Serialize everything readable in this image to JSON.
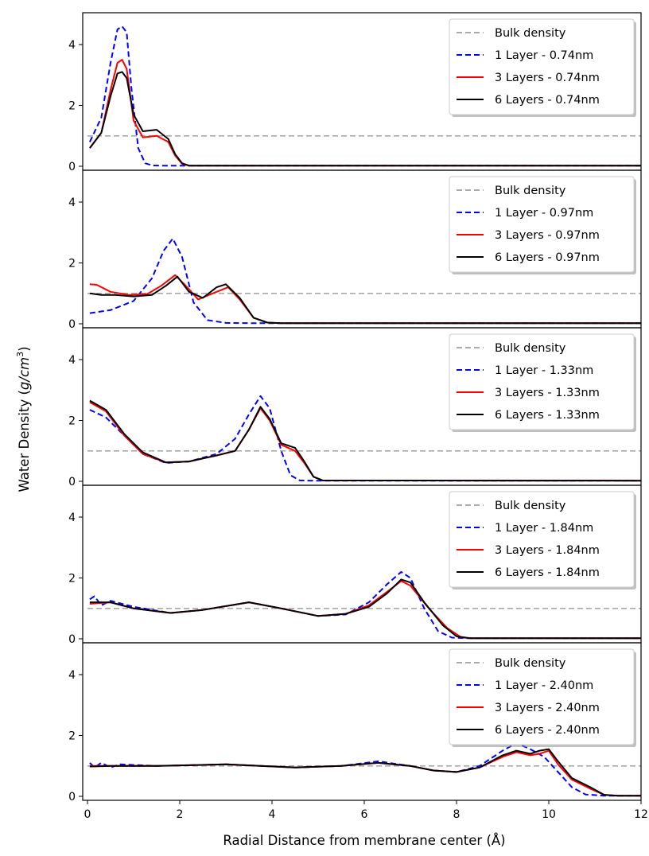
{
  "figure": {
    "xlabel": "Radial Distance from membrane center (Å)",
    "ylabel_main": "Water Density (",
    "ylabel_unit": "g/cm",
    "ylabel_exp": "3",
    "ylabel_close": ")"
  },
  "chart_data": [
    {
      "type": "line",
      "xlim": [
        0,
        12
      ],
      "ylim": [
        0,
        5
      ],
      "grid": false,
      "legend": "top-right",
      "xticks": [
        "0",
        "2",
        "4",
        "6",
        "8",
        "10",
        "12"
      ],
      "yticks": [
        "0",
        "2",
        "4"
      ],
      "series": [
        {
          "name": "Bulk density",
          "color": "#aaaaaa",
          "style": "dashed",
          "x": [
            0,
            12
          ],
          "y": [
            1,
            1
          ]
        },
        {
          "name": "1 Layer - 0.74nm",
          "color": "#0000ff",
          "style": "dashed",
          "x": [
            0.05,
            0.3,
            0.5,
            0.65,
            0.75,
            0.85,
            0.95,
            1.1,
            1.25,
            1.4,
            1.6,
            2.0,
            12
          ],
          "y": [
            0.8,
            1.6,
            3.4,
            4.5,
            4.6,
            4.4,
            2.6,
            0.6,
            0.1,
            0.03,
            0.02,
            0.02,
            0.02
          ]
        },
        {
          "name": "3 Layers - 0.74nm",
          "color": "#ff0000",
          "style": "solid",
          "x": [
            0.05,
            0.3,
            0.5,
            0.65,
            0.75,
            0.85,
            1.0,
            1.2,
            1.5,
            1.75,
            1.9,
            2.05,
            2.2,
            12
          ],
          "y": [
            0.6,
            1.1,
            2.5,
            3.4,
            3.5,
            3.2,
            1.5,
            0.95,
            1.0,
            0.8,
            0.35,
            0.08,
            0.02,
            0.02
          ]
        },
        {
          "name": "6 Layers - 0.74nm",
          "color": "#000000",
          "style": "solid",
          "x": [
            0.05,
            0.3,
            0.5,
            0.65,
            0.75,
            0.85,
            1.0,
            1.2,
            1.5,
            1.75,
            1.9,
            2.05,
            2.2,
            12
          ],
          "y": [
            0.6,
            1.1,
            2.3,
            3.05,
            3.1,
            2.9,
            1.7,
            1.15,
            1.2,
            0.9,
            0.4,
            0.1,
            0.02,
            0.02
          ]
        }
      ]
    },
    {
      "type": "line",
      "xlim": [
        0,
        12
      ],
      "ylim": [
        0,
        5
      ],
      "grid": false,
      "legend": "top-right",
      "xticks": [
        "0",
        "2",
        "4",
        "6",
        "8",
        "10",
        "12"
      ],
      "yticks": [
        "0",
        "2",
        "4"
      ],
      "series": [
        {
          "name": "Bulk density",
          "color": "#aaaaaa",
          "style": "dashed",
          "x": [
            0,
            12
          ],
          "y": [
            1,
            1
          ]
        },
        {
          "name": "1 Layer - 0.97nm",
          "color": "#0000ff",
          "style": "dashed",
          "x": [
            0.05,
            0.5,
            1.0,
            1.4,
            1.65,
            1.85,
            2.05,
            2.3,
            2.6,
            3.0,
            3.5,
            12
          ],
          "y": [
            0.35,
            0.45,
            0.75,
            1.5,
            2.4,
            2.8,
            2.2,
            0.7,
            0.12,
            0.03,
            0.02,
            0.02
          ]
        },
        {
          "name": "3 Layers - 0.97nm",
          "color": "#ff0000",
          "style": "solid",
          "x": [
            0.05,
            0.2,
            0.5,
            0.9,
            1.3,
            1.6,
            1.9,
            2.1,
            2.4,
            2.8,
            3.05,
            3.3,
            3.6,
            3.9,
            4.2,
            12
          ],
          "y": [
            1.3,
            1.28,
            1.05,
            0.95,
            0.98,
            1.25,
            1.6,
            1.3,
            0.8,
            1.05,
            1.2,
            0.8,
            0.2,
            0.04,
            0.02,
            0.02
          ]
        },
        {
          "name": "6 Layers - 0.97nm",
          "color": "#000000",
          "style": "solid",
          "x": [
            0.05,
            0.3,
            0.6,
            1.0,
            1.4,
            1.7,
            1.95,
            2.2,
            2.5,
            2.8,
            3.0,
            3.3,
            3.6,
            3.9,
            4.2,
            12
          ],
          "y": [
            1.0,
            0.95,
            0.95,
            0.9,
            0.95,
            1.25,
            1.55,
            1.05,
            0.85,
            1.2,
            1.3,
            0.85,
            0.2,
            0.04,
            0.02,
            0.02
          ]
        }
      ]
    },
    {
      "type": "line",
      "xlim": [
        0,
        12
      ],
      "ylim": [
        0,
        5
      ],
      "grid": false,
      "legend": "top-right",
      "xticks": [
        "0",
        "2",
        "4",
        "6",
        "8",
        "10",
        "12"
      ],
      "yticks": [
        "0",
        "2",
        "4"
      ],
      "series": [
        {
          "name": "Bulk density",
          "color": "#aaaaaa",
          "style": "dashed",
          "x": [
            0,
            12
          ],
          "y": [
            1,
            1
          ]
        },
        {
          "name": "1 Layer - 1.33nm",
          "color": "#0000ff",
          "style": "dashed",
          "x": [
            0.05,
            0.4,
            0.8,
            1.2,
            1.7,
            2.2,
            2.8,
            3.2,
            3.5,
            3.75,
            3.95,
            4.2,
            4.4,
            4.6,
            4.9,
            12
          ],
          "y": [
            2.35,
            2.1,
            1.5,
            0.9,
            0.6,
            0.65,
            0.9,
            1.4,
            2.2,
            2.8,
            2.4,
            1.0,
            0.2,
            0.03,
            0.02,
            0.02
          ]
        },
        {
          "name": "3 Layers - 1.33nm",
          "color": "#ff0000",
          "style": "solid",
          "x": [
            0.05,
            0.4,
            0.8,
            1.2,
            1.7,
            2.2,
            2.8,
            3.2,
            3.5,
            3.75,
            3.95,
            4.2,
            4.5,
            4.7,
            4.9,
            5.1,
            12
          ],
          "y": [
            2.6,
            2.3,
            1.5,
            0.9,
            0.62,
            0.65,
            0.85,
            1.0,
            1.7,
            2.4,
            2.0,
            1.2,
            1.0,
            0.6,
            0.15,
            0.03,
            0.02
          ]
        },
        {
          "name": "6 Layers - 1.33nm",
          "color": "#000000",
          "style": "solid",
          "x": [
            0.05,
            0.4,
            0.8,
            1.2,
            1.7,
            2.2,
            2.8,
            3.2,
            3.5,
            3.75,
            3.95,
            4.2,
            4.5,
            4.7,
            4.9,
            5.1,
            12
          ],
          "y": [
            2.65,
            2.35,
            1.55,
            0.95,
            0.62,
            0.65,
            0.85,
            1.0,
            1.7,
            2.45,
            2.05,
            1.25,
            1.1,
            0.65,
            0.15,
            0.03,
            0.02
          ]
        }
      ]
    },
    {
      "type": "line",
      "xlim": [
        0,
        12
      ],
      "ylim": [
        0,
        5
      ],
      "grid": false,
      "legend": "top-right",
      "xticks": [
        "0",
        "2",
        "4",
        "6",
        "8",
        "10",
        "12"
      ],
      "yticks": [
        "0",
        "2",
        "4"
      ],
      "series": [
        {
          "name": "Bulk density",
          "color": "#aaaaaa",
          "style": "dashed",
          "x": [
            0,
            12
          ],
          "y": [
            1,
            1
          ]
        },
        {
          "name": "1 Layer - 1.84nm",
          "color": "#0000ff",
          "style": "dashed",
          "x": [
            0.05,
            0.15,
            0.3,
            0.5,
            1.0,
            1.8,
            2.5,
            3.5,
            4.2,
            5.0,
            5.6,
            6.1,
            6.5,
            6.8,
            7.0,
            7.3,
            7.6,
            7.9,
            8.2,
            12
          ],
          "y": [
            1.3,
            1.4,
            1.1,
            1.25,
            1.05,
            0.85,
            0.95,
            1.2,
            1.0,
            0.75,
            0.8,
            1.2,
            1.8,
            2.2,
            2.0,
            1.0,
            0.25,
            0.04,
            0.02,
            0.02
          ]
        },
        {
          "name": "3 Layers - 1.84nm",
          "color": "#ff0000",
          "style": "solid",
          "x": [
            0.05,
            0.5,
            1.0,
            1.8,
            2.5,
            3.5,
            4.2,
            5.0,
            5.6,
            6.1,
            6.5,
            6.8,
            7.0,
            7.4,
            7.8,
            8.1,
            8.3,
            12
          ],
          "y": [
            1.15,
            1.2,
            1.0,
            0.85,
            0.95,
            1.2,
            1.0,
            0.75,
            0.82,
            1.1,
            1.55,
            1.9,
            1.75,
            1.0,
            0.35,
            0.05,
            0.02,
            0.02
          ]
        },
        {
          "name": "6 Layers - 1.84nm",
          "color": "#000000",
          "style": "solid",
          "x": [
            0.05,
            0.5,
            1.0,
            1.8,
            2.5,
            3.5,
            4.2,
            5.0,
            5.6,
            6.1,
            6.5,
            6.8,
            7.0,
            7.3,
            7.7,
            8.0,
            8.3,
            12
          ],
          "y": [
            1.2,
            1.2,
            1.0,
            0.85,
            0.95,
            1.2,
            1.0,
            0.75,
            0.82,
            1.05,
            1.5,
            1.95,
            1.85,
            1.2,
            0.45,
            0.08,
            0.02,
            0.02
          ]
        }
      ]
    },
    {
      "type": "line",
      "xlim": [
        0,
        12
      ],
      "ylim": [
        0,
        5
      ],
      "grid": false,
      "legend": "top-right",
      "xticks": [
        "0",
        "2",
        "4",
        "6",
        "8",
        "10",
        "12"
      ],
      "yticks": [
        "0",
        "2",
        "4"
      ],
      "series": [
        {
          "name": "Bulk density",
          "color": "#aaaaaa",
          "style": "dashed",
          "x": [
            0,
            12
          ],
          "y": [
            1,
            1
          ]
        },
        {
          "name": "1 Layer - 2.40nm",
          "color": "#0000ff",
          "style": "dashed",
          "x": [
            0.05,
            0.15,
            0.3,
            0.5,
            0.7,
            1.5,
            3.0,
            4.5,
            5.5,
            6.3,
            7.0,
            7.5,
            8.0,
            8.5,
            9.0,
            9.3,
            9.6,
            9.9,
            10.2,
            10.5,
            10.8,
            11.2,
            12
          ],
          "y": [
            1.1,
            0.95,
            1.1,
            0.95,
            1.05,
            1.0,
            1.05,
            0.95,
            1.0,
            1.15,
            1.0,
            0.85,
            0.8,
            1.0,
            1.5,
            1.75,
            1.55,
            1.3,
            0.8,
            0.3,
            0.06,
            0.02,
            0.02
          ]
        },
        {
          "name": "3 Layers - 2.40nm",
          "color": "#ff0000",
          "style": "solid",
          "x": [
            0.05,
            0.5,
            1.5,
            3.0,
            4.5,
            5.5,
            6.3,
            7.0,
            7.5,
            8.0,
            8.5,
            9.0,
            9.3,
            9.6,
            9.8,
            10.0,
            10.2,
            10.5,
            10.9,
            11.2,
            11.5,
            12
          ],
          "y": [
            1.0,
            1.0,
            1.0,
            1.05,
            0.95,
            1.0,
            1.1,
            1.0,
            0.85,
            0.8,
            0.95,
            1.3,
            1.45,
            1.35,
            1.4,
            1.5,
            1.05,
            0.55,
            0.25,
            0.05,
            0.02,
            0.02
          ]
        },
        {
          "name": "6 Layers - 2.40nm",
          "color": "#000000",
          "style": "solid",
          "x": [
            0.05,
            0.5,
            1.5,
            3.0,
            4.5,
            5.5,
            6.3,
            7.0,
            7.5,
            8.0,
            8.5,
            9.0,
            9.3,
            9.6,
            9.8,
            10.0,
            10.2,
            10.5,
            10.9,
            11.2,
            11.5,
            12
          ],
          "y": [
            0.98,
            1.0,
            1.0,
            1.05,
            0.95,
            1.0,
            1.1,
            1.0,
            0.85,
            0.8,
            0.95,
            1.35,
            1.5,
            1.4,
            1.5,
            1.55,
            1.15,
            0.6,
            0.3,
            0.05,
            0.02,
            0.02
          ]
        }
      ]
    }
  ]
}
